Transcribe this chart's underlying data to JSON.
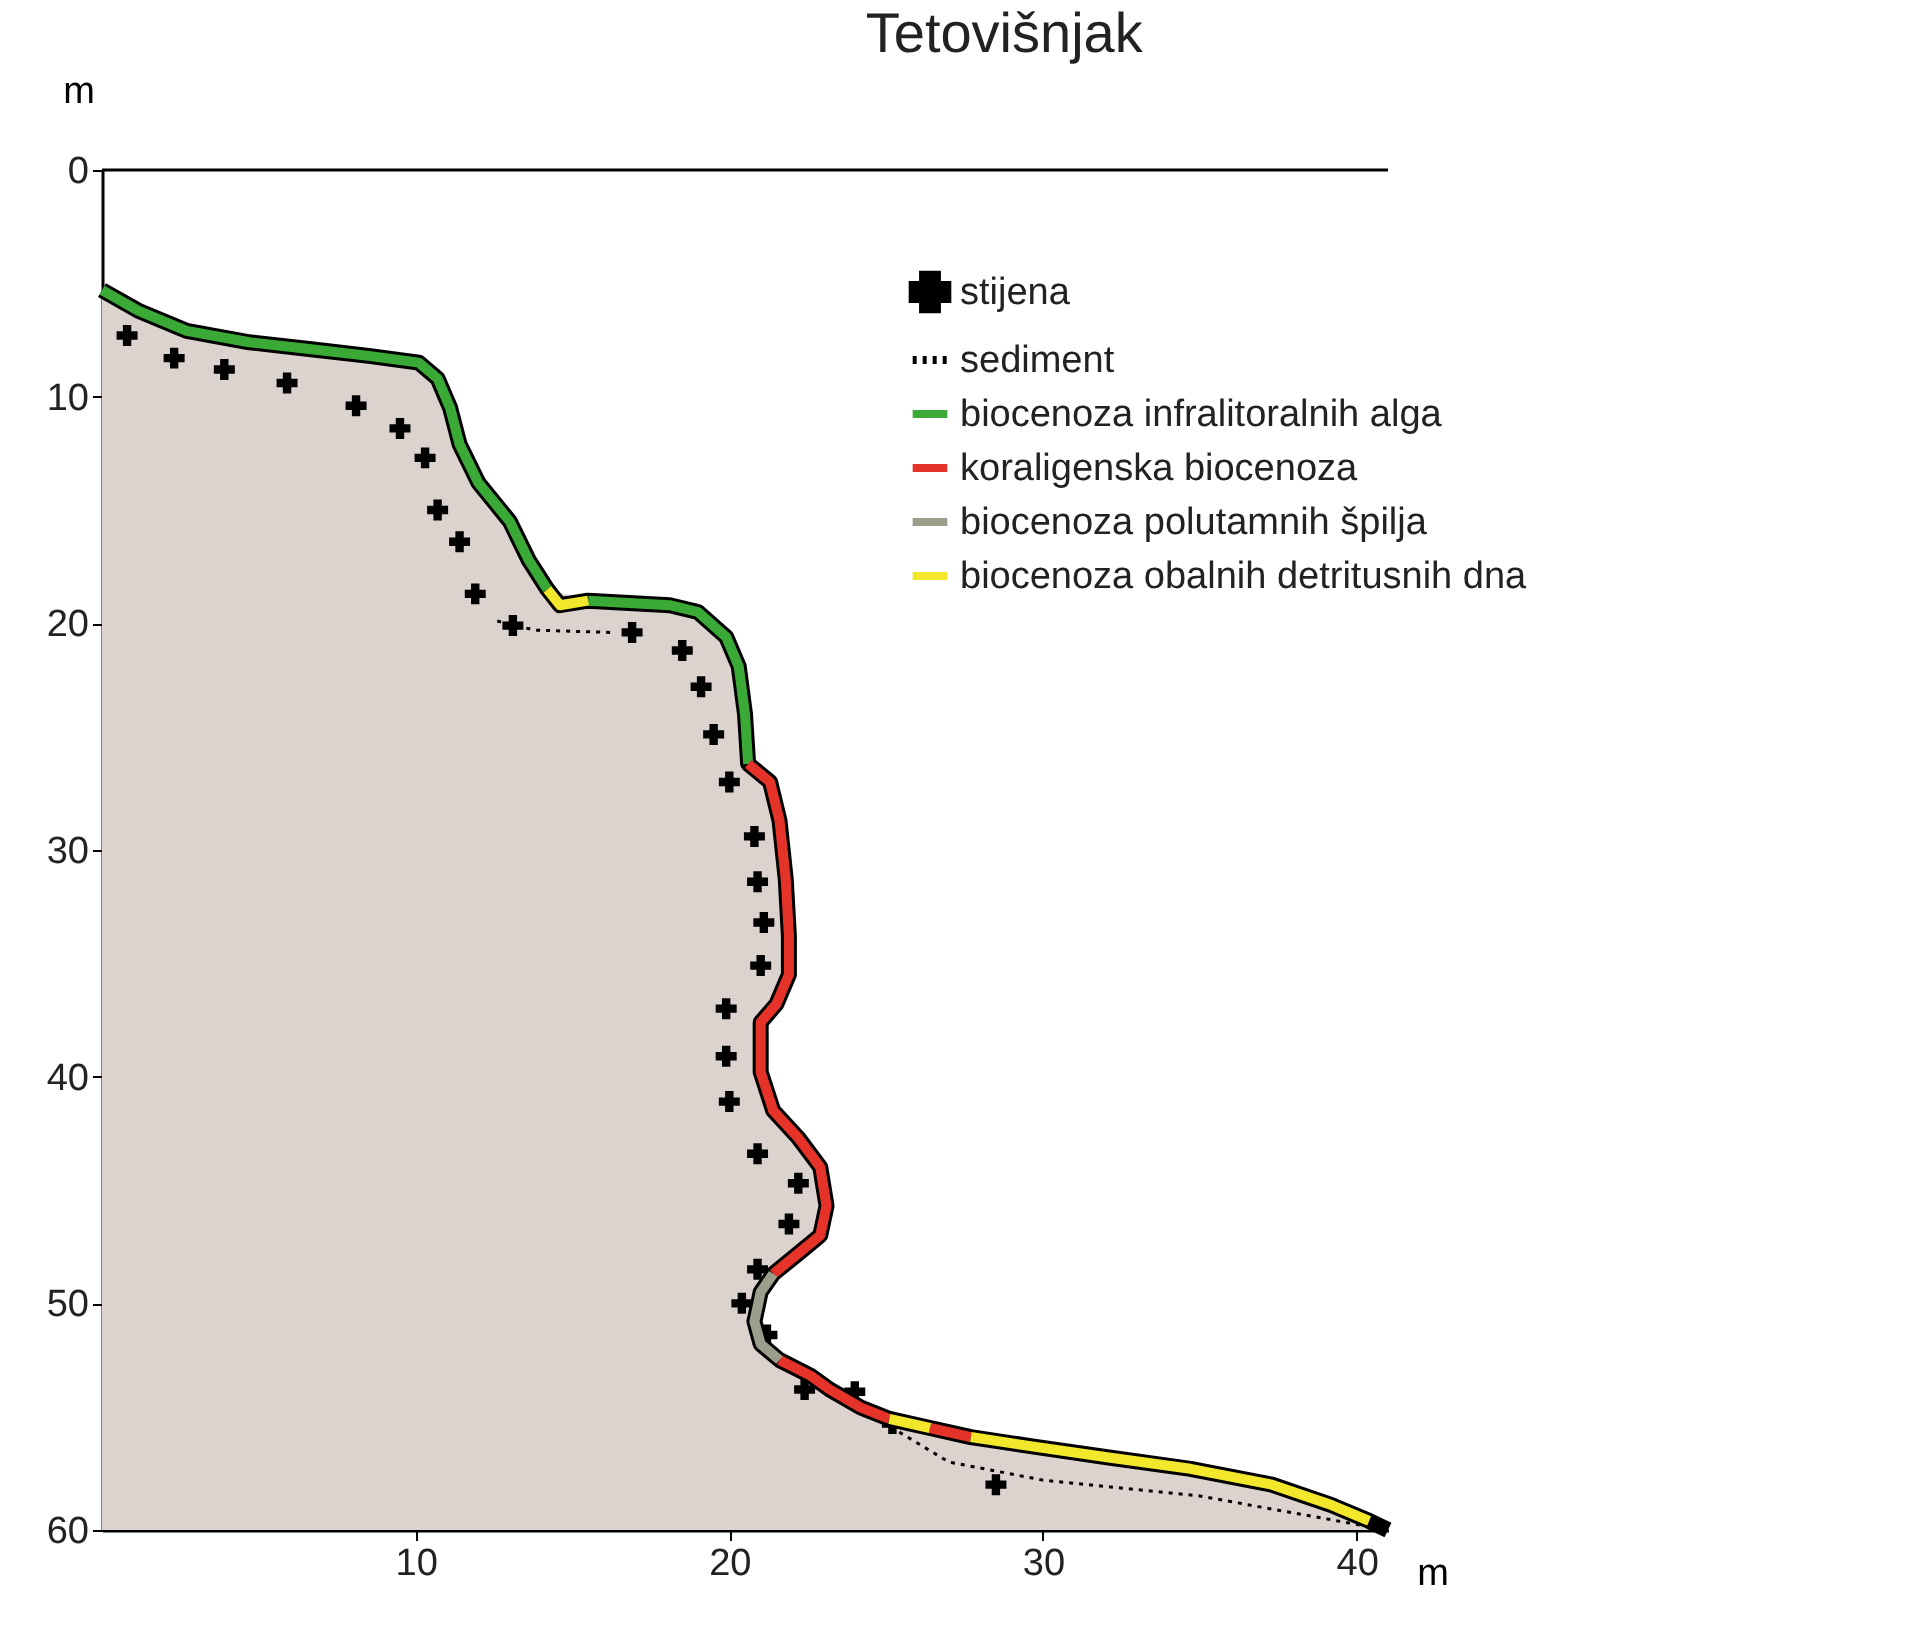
{
  "chart_data": {
    "type": "line",
    "title": "Tetovišnjak",
    "xlabel": "m",
    "ylabel": "m",
    "xlim": [
      0,
      41
    ],
    "ylim": [
      60,
      0
    ],
    "xticks": [
      10,
      20,
      30,
      40
    ],
    "yticks": [
      0,
      10,
      20,
      30,
      40,
      50,
      60
    ],
    "grid": false,
    "legend": "top right",
    "ref_lines": [
      {
        "axis": "y",
        "value": 0,
        "color": "#000000"
      }
    ],
    "series": [
      {
        "type": "scatter",
        "name": "stijena",
        "color": "#000000",
        "marker": "cross",
        "x": [
          0.8,
          2.3,
          3.9,
          5.9,
          8.1,
          9.5,
          10.3,
          10.7,
          11.4,
          11.9,
          13.1,
          16.9,
          18.5,
          19.1,
          19.5,
          20.0,
          20.8,
          20.9,
          21.1,
          21.0,
          19.9,
          19.9,
          20.0,
          20.9,
          22.2,
          21.9,
          20.9,
          20.4,
          21.2,
          22.4,
          24.0,
          25.2,
          28.5
        ],
        "values": [
          7.3,
          8.3,
          8.8,
          9.4,
          10.4,
          11.4,
          12.7,
          15.0,
          16.4,
          18.7,
          20.1,
          20.4,
          21.2,
          22.8,
          24.9,
          27.0,
          29.4,
          31.4,
          33.2,
          35.1,
          37.0,
          39.1,
          41.1,
          43.4,
          44.7,
          46.5,
          48.5,
          50.0,
          51.4,
          53.8,
          53.9,
          55.3,
          58.0
        ]
      },
      {
        "type": "line",
        "name": "sediment",
        "color": "#000000",
        "line_style": "dotted",
        "x": [
          12.6,
          13.8,
          16.2,
          null,
          24.6,
          27.0,
          30.0,
          35.0,
          39.0,
          41.0
        ],
        "values": [
          19.9,
          20.3,
          20.4,
          null,
          55.0,
          57.0,
          57.8,
          58.5,
          59.5,
          60
        ]
      },
      {
        "type": "line",
        "name": "biocenoza infralitoralnih alga",
        "color": "#3aa935",
        "x": [
          0,
          1.15,
          2.7,
          4.7,
          6.6,
          8.5,
          10.1,
          10.7,
          11.1,
          11.4,
          12.0,
          13.0,
          13.6,
          14.2,
          null,
          15.5,
          18.1,
          19.0,
          19.9,
          20.3,
          20.5,
          20.6
        ],
        "values": [
          5.3,
          6.2,
          7.1,
          7.6,
          7.9,
          8.2,
          8.5,
          9.2,
          10.5,
          12.1,
          13.8,
          15.5,
          17.2,
          18.5,
          null,
          19.0,
          19.2,
          19.5,
          20.6,
          21.9,
          24.0,
          26.2
        ]
      },
      {
        "type": "line",
        "name": "koraligenska biocenoza",
        "color": "#e6332a",
        "x": [
          20.6,
          21.3,
          21.6,
          21.8,
          21.9,
          21.9,
          21.5,
          21.0,
          21.0,
          21.4,
          22.2,
          22.9,
          23.1,
          22.9,
          22.2,
          21.4,
          null,
          21.6,
          22.6,
          23.2,
          24.2,
          25.1,
          null,
          26.4,
          27.7
        ],
        "values": [
          26.2,
          27.0,
          28.7,
          31.3,
          33.8,
          35.5,
          36.8,
          37.6,
          39.8,
          41.5,
          42.7,
          44.0,
          45.7,
          47.0,
          47.8,
          48.7,
          null,
          52.5,
          53.2,
          53.8,
          54.6,
          55.1,
          null,
          55.5,
          55.9
        ]
      },
      {
        "type": "line",
        "name": "biocenoza polutamnih špilja",
        "color": "#9d9d8c",
        "x": [
          21.4,
          21.0,
          20.8,
          21.0,
          21.6
        ],
        "values": [
          48.7,
          49.5,
          50.8,
          51.8,
          52.5
        ]
      },
      {
        "type": "line",
        "name": "biocenoza obalnih detritusnih dna",
        "color": "#f2e72a",
        "x": [
          14.2,
          14.6,
          15.5,
          null,
          25.1,
          26.4,
          null,
          27.7,
          29.6,
          32.1,
          34.7,
          37.3,
          39.2,
          40.4
        ],
        "values": [
          18.5,
          19.2,
          19.0,
          null,
          55.1,
          55.5,
          null,
          55.9,
          56.3,
          56.8,
          57.3,
          58.0,
          58.9,
          59.6
        ]
      },
      {
        "type": "line",
        "color": "#000000",
        "x": [
          0,
          1.15,
          2.7,
          4.7,
          6.6,
          8.5,
          10.1,
          10.7,
          11.1,
          11.4,
          12.0,
          13.0,
          13.6,
          14.2,
          14.6,
          15.5,
          18.1,
          19.0,
          19.9,
          20.3,
          20.5,
          20.6,
          21.3,
          21.6,
          21.8,
          21.9,
          21.9,
          21.5,
          21.0,
          21.0,
          21.4,
          22.2,
          22.9,
          23.1,
          22.9,
          22.2,
          21.4,
          21.0,
          20.8,
          21.0,
          21.6,
          22.6,
          23.2,
          24.2,
          25.1,
          26.4,
          27.7,
          29.6,
          32.1,
          34.7,
          37.3,
          39.2,
          40.4,
          41.0
        ],
        "values": [
          5.3,
          6.2,
          7.1,
          7.6,
          7.9,
          8.2,
          8.5,
          9.2,
          10.5,
          12.1,
          13.8,
          15.5,
          17.2,
          18.5,
          19.2,
          19.0,
          19.2,
          19.5,
          20.6,
          21.9,
          24.0,
          26.2,
          27.0,
          28.7,
          31.3,
          33.8,
          35.5,
          36.8,
          37.6,
          39.8,
          41.5,
          42.7,
          44.0,
          45.7,
          47.0,
          47.8,
          48.7,
          49.5,
          50.8,
          51.8,
          52.5,
          53.2,
          53.8,
          54.6,
          55.1,
          55.5,
          55.9,
          56.3,
          56.8,
          57.3,
          58.0,
          58.9,
          59.6,
          60
        ]
      }
    ]
  }
}
